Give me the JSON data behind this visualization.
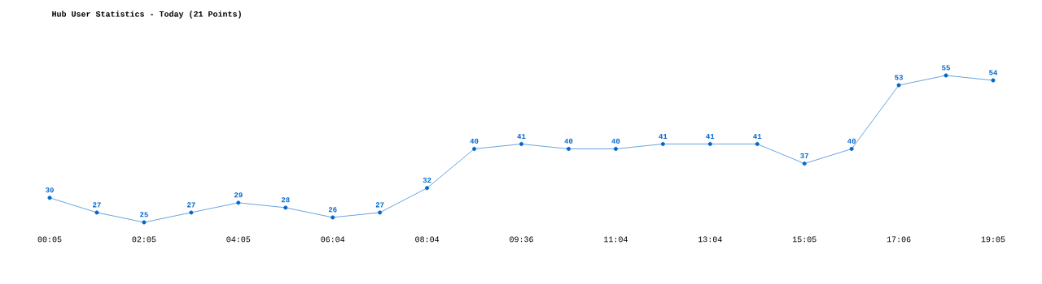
{
  "chart_data": {
    "type": "line",
    "title": "Hub User Statistics - Today (21 Points)",
    "categories": [
      "00:05",
      null,
      "02:05",
      null,
      "04:05",
      null,
      "06:04",
      null,
      "08:04",
      null,
      "09:36",
      null,
      "11:04",
      null,
      "13:04",
      null,
      "15:05",
      null,
      "17:06",
      null,
      "19:05"
    ],
    "series": [
      {
        "color": "#0066cc",
        "values": [
          30,
          27,
          25,
          27,
          29,
          28,
          26,
          27,
          32,
          40,
          41,
          40,
          40,
          41,
          41,
          41,
          37,
          40,
          53,
          55,
          54
        ]
      }
    ],
    "data_labels": true,
    "marker": "circle",
    "line_style": "solid"
  }
}
